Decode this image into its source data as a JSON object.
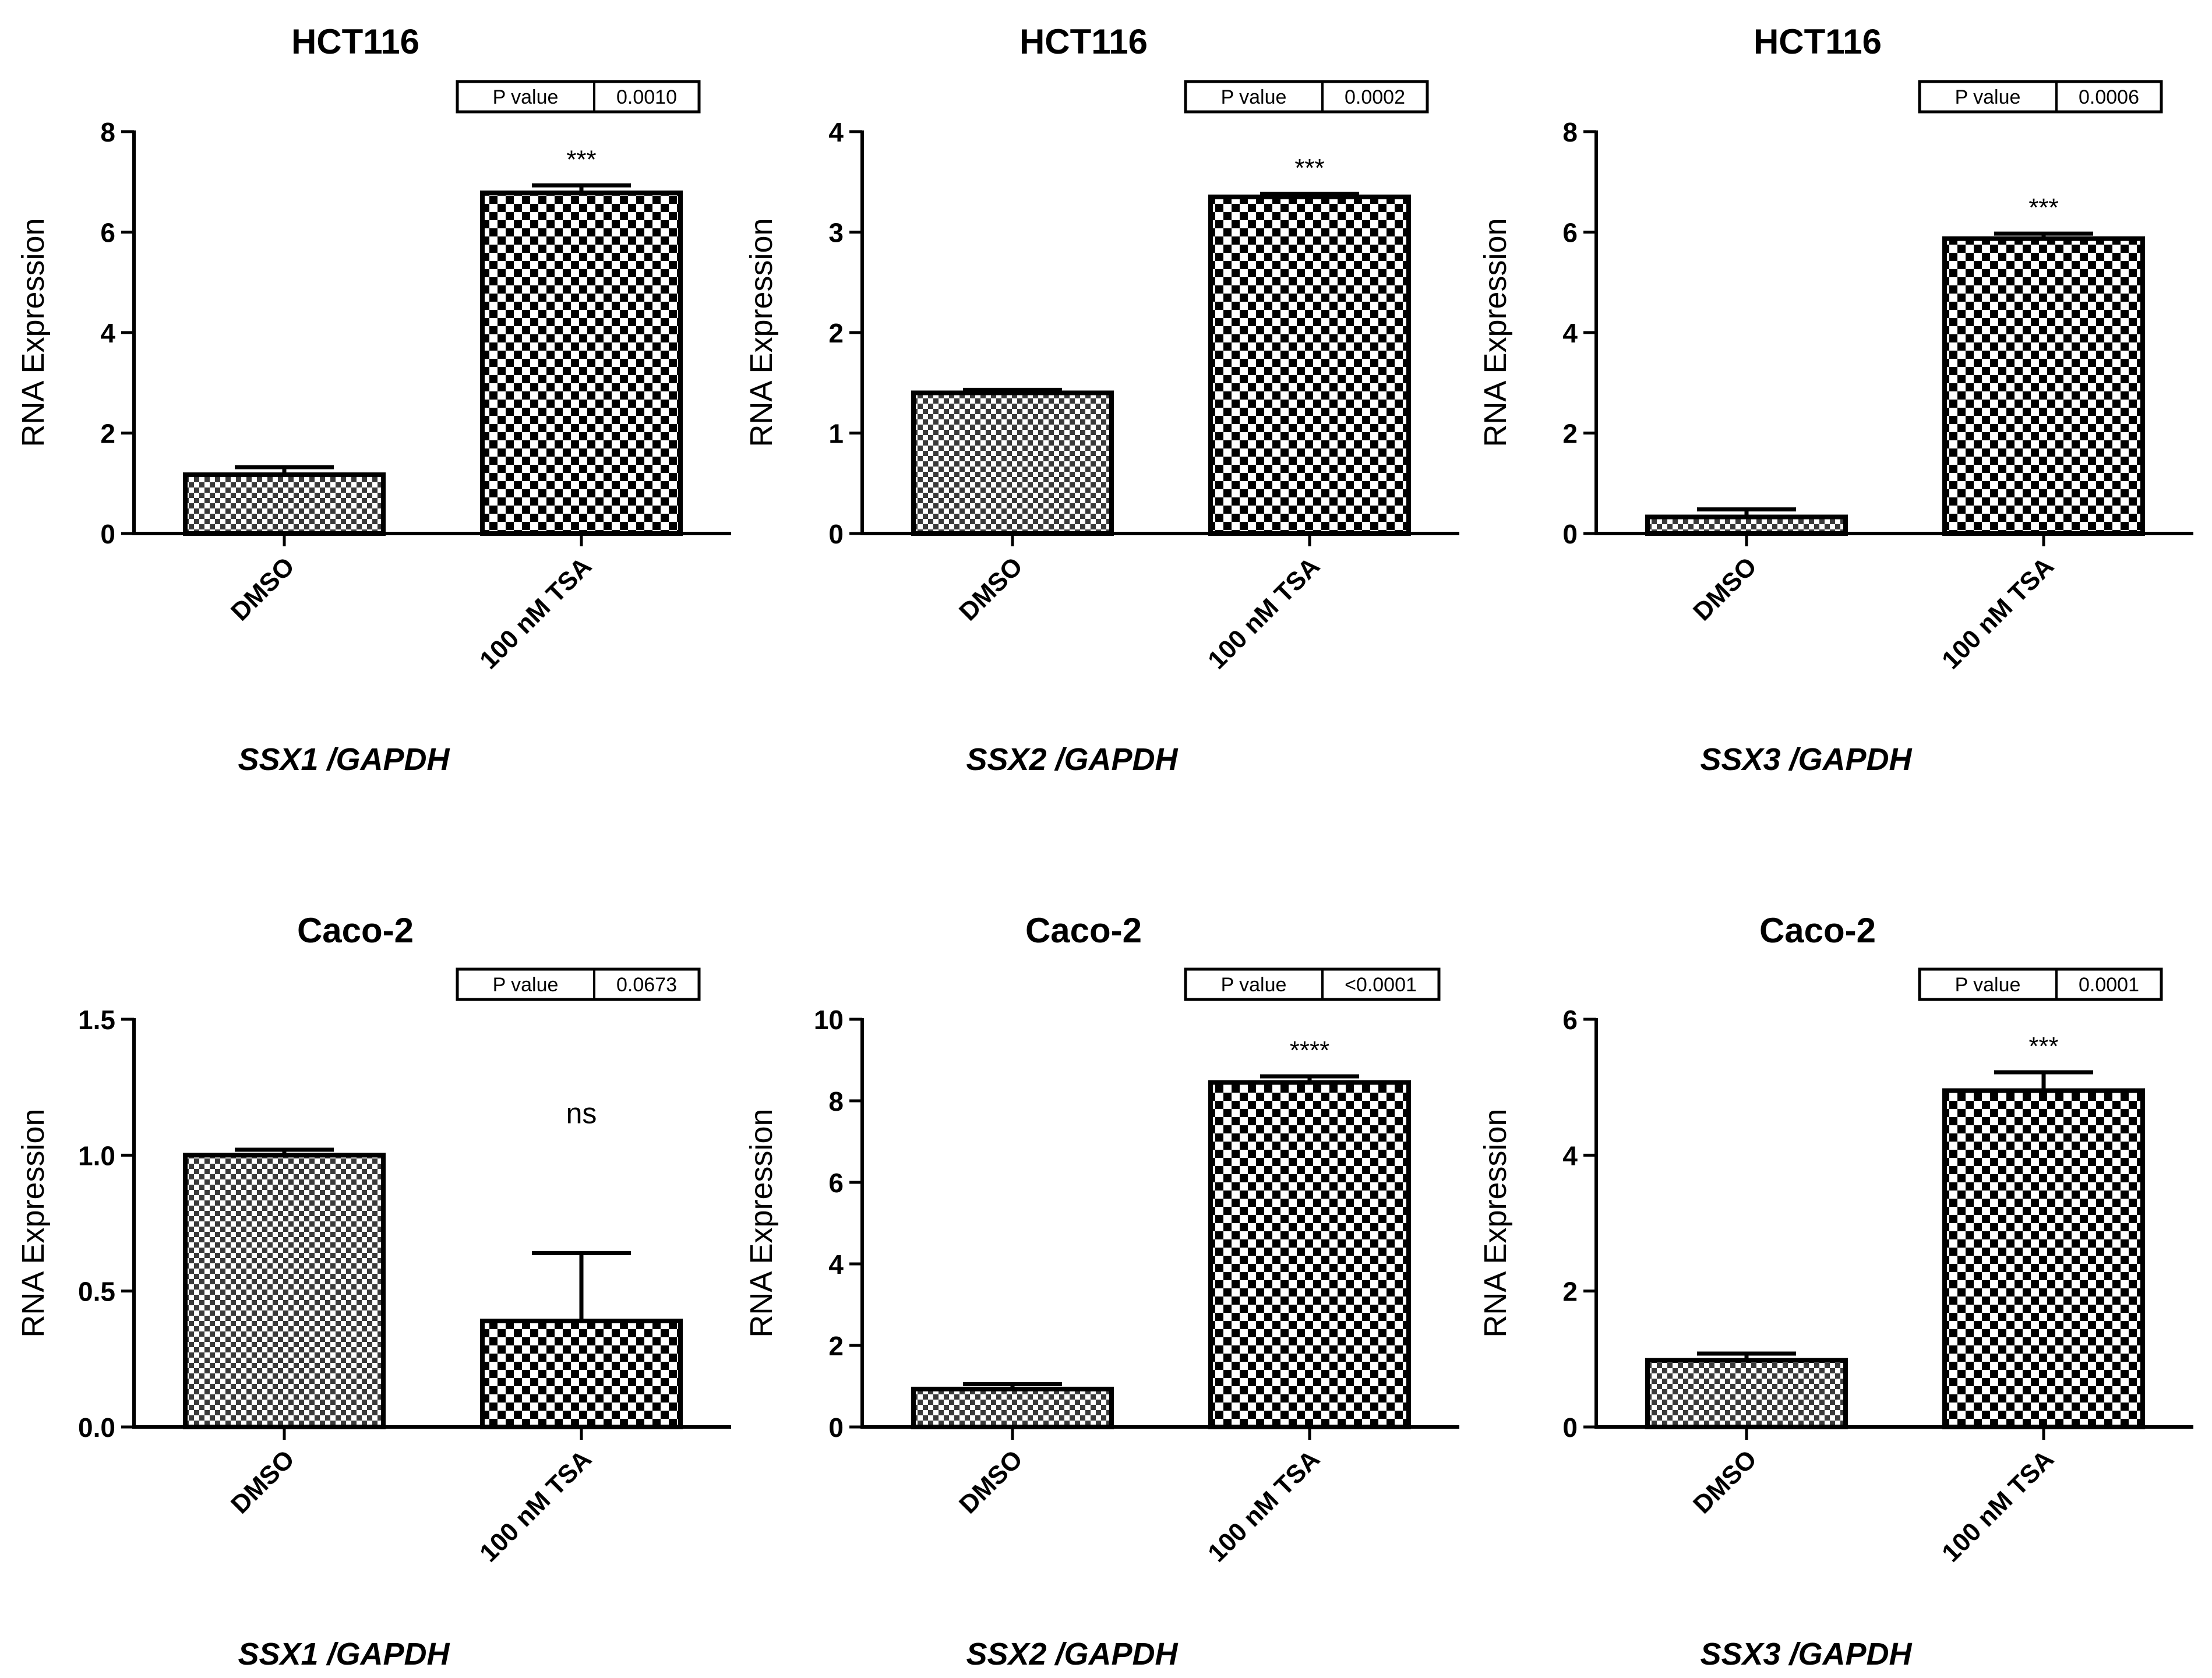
{
  "figure": {
    "background": "#ffffff",
    "ink": "#000000"
  },
  "p_value_label": "P value",
  "y_label": "RNA Expression",
  "chart_data": [
    {
      "type": "bar",
      "title": "HCT116",
      "xlabel": "SSX1 /GAPDH",
      "ylabel": "RNA Expression",
      "categories": [
        "DMSO",
        "100 nM TSA"
      ],
      "values": [
        1.17,
        6.78
      ],
      "errors": [
        0.15,
        0.15
      ],
      "ylim": [
        0,
        8
      ],
      "yticks": [
        "0",
        "2",
        "4",
        "6",
        "8"
      ],
      "significance": "***",
      "p_value": "0.0010"
    },
    {
      "type": "bar",
      "title": "HCT116",
      "xlabel": "SSX2 /GAPDH",
      "ylabel": "RNA Expression",
      "categories": [
        "DMSO",
        "100 nM TSA"
      ],
      "values": [
        1.4,
        3.35
      ],
      "errors": [
        0.03,
        0.03
      ],
      "ylim": [
        0,
        4
      ],
      "yticks": [
        "0",
        "1",
        "2",
        "3",
        "4"
      ],
      "significance": "***",
      "p_value": "0.0002"
    },
    {
      "type": "bar",
      "title": "HCT116",
      "xlabel": "SSX3 /GAPDH",
      "ylabel": "RNA Expression",
      "categories": [
        "DMSO",
        "100 nM TSA"
      ],
      "values": [
        0.33,
        5.87
      ],
      "errors": [
        0.15,
        0.1
      ],
      "ylim": [
        0,
        8
      ],
      "yticks": [
        "0",
        "2",
        "4",
        "6",
        "8"
      ],
      "significance": "***",
      "p_value": "0.0006"
    },
    {
      "type": "bar",
      "title": "Caco-2",
      "xlabel": "SSX1 /GAPDH",
      "ylabel": "RNA Expression",
      "categories": [
        "DMSO",
        "100 nM TSA"
      ],
      "values": [
        1.0,
        0.39
      ],
      "errors": [
        0.02,
        0.25
      ],
      "ylim": [
        0,
        1.5
      ],
      "yticks": [
        "0.0",
        "0.5",
        "1.0",
        "1.5"
      ],
      "significance": "ns",
      "p_value": "0.0673"
    },
    {
      "type": "bar",
      "title": "Caco-2",
      "xlabel": "SSX2 /GAPDH",
      "ylabel": "RNA Expression",
      "categories": [
        "DMSO",
        "100 nM TSA"
      ],
      "values": [
        0.93,
        8.45
      ],
      "errors": [
        0.12,
        0.15
      ],
      "ylim": [
        0,
        10
      ],
      "yticks": [
        "0",
        "2",
        "4",
        "6",
        "8",
        "10"
      ],
      "significance": "****",
      "p_value": "<0.0001"
    },
    {
      "type": "bar",
      "title": "Caco-2",
      "xlabel": "SSX3 /GAPDH",
      "ylabel": "RNA Expression",
      "categories": [
        "DMSO",
        "100 nM TSA"
      ],
      "values": [
        0.98,
        4.95
      ],
      "errors": [
        0.1,
        0.27
      ],
      "ylim": [
        0,
        6
      ],
      "yticks": [
        "0",
        "2",
        "4",
        "6"
      ],
      "significance": "***",
      "p_value": "0.0001"
    }
  ]
}
